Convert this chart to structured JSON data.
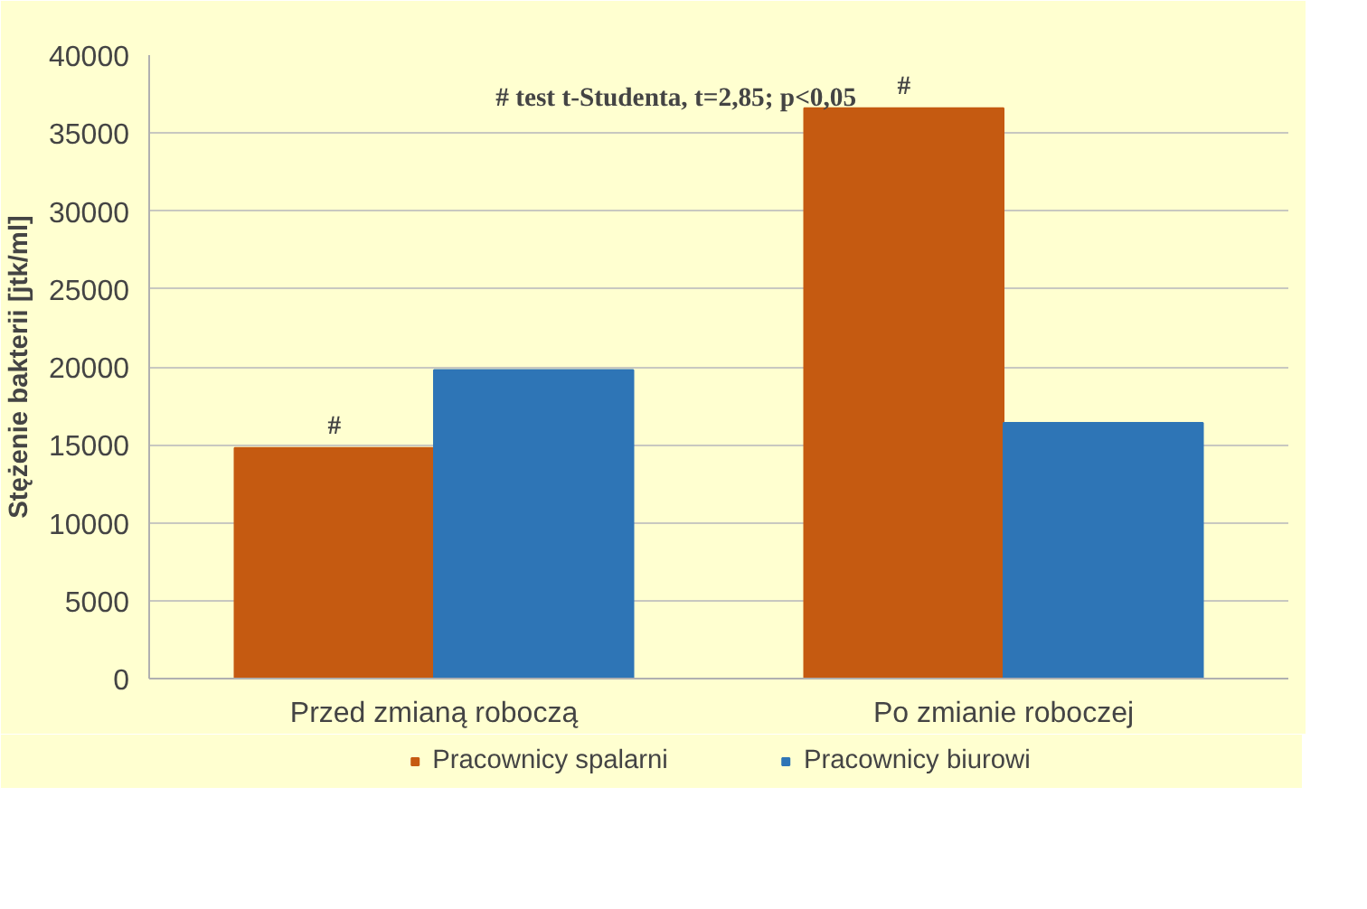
{
  "chart_data": {
    "type": "bar",
    "ylabel": "Stężenie bakterii [jtk/ml]",
    "categories": [
      "Przed zmianą roboczą",
      "Po zmianie roboczej"
    ],
    "series": [
      {
        "name": "Pracownicy spalarni",
        "color": "#c55a11",
        "values": [
          14800,
          36600
        ]
      },
      {
        "name": "Pracownicy biurowi",
        "color": "#2e75b6",
        "values": [
          19800,
          16400
        ]
      }
    ],
    "ylim": [
      0,
      40000
    ],
    "yticks": [
      0,
      5000,
      10000,
      15000,
      20000,
      25000,
      30000,
      35000,
      40000
    ],
    "grid": "y",
    "legend": "bottom",
    "annotations": [
      "#   test t-Studenta, t=2,85; p<0,05",
      "#",
      "#"
    ]
  }
}
